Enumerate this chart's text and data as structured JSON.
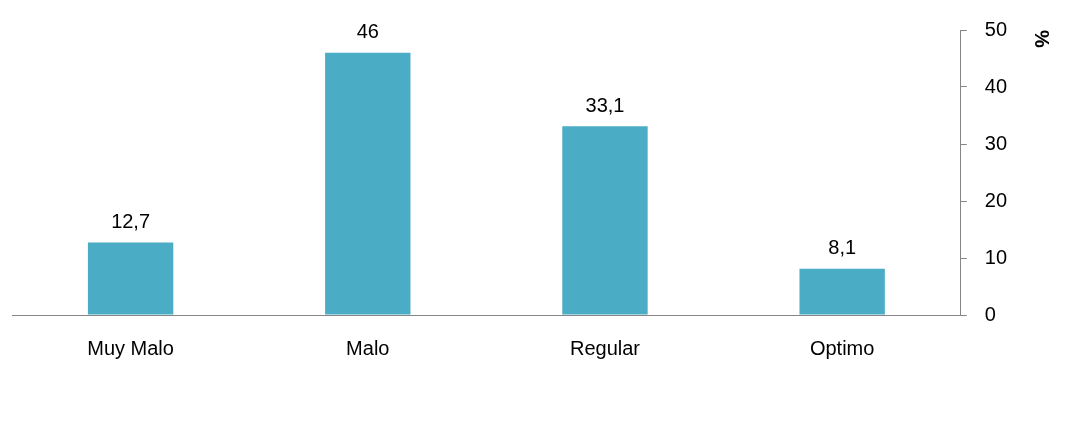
{
  "chart_data": {
    "type": "bar",
    "ylabel": "%",
    "categories": [
      "Muy Malo",
      "Malo",
      "Regular",
      "Optimo"
    ],
    "values": [
      12.7,
      46,
      33.1,
      8.1
    ],
    "value_labels": [
      "12,7",
      "46",
      "33,1",
      "8,1"
    ],
    "color": "#4bacc6",
    "ylim": [
      0,
      50
    ],
    "yticks": [
      0,
      10,
      20,
      30,
      40,
      50
    ],
    "grid": false,
    "legend": false
  }
}
